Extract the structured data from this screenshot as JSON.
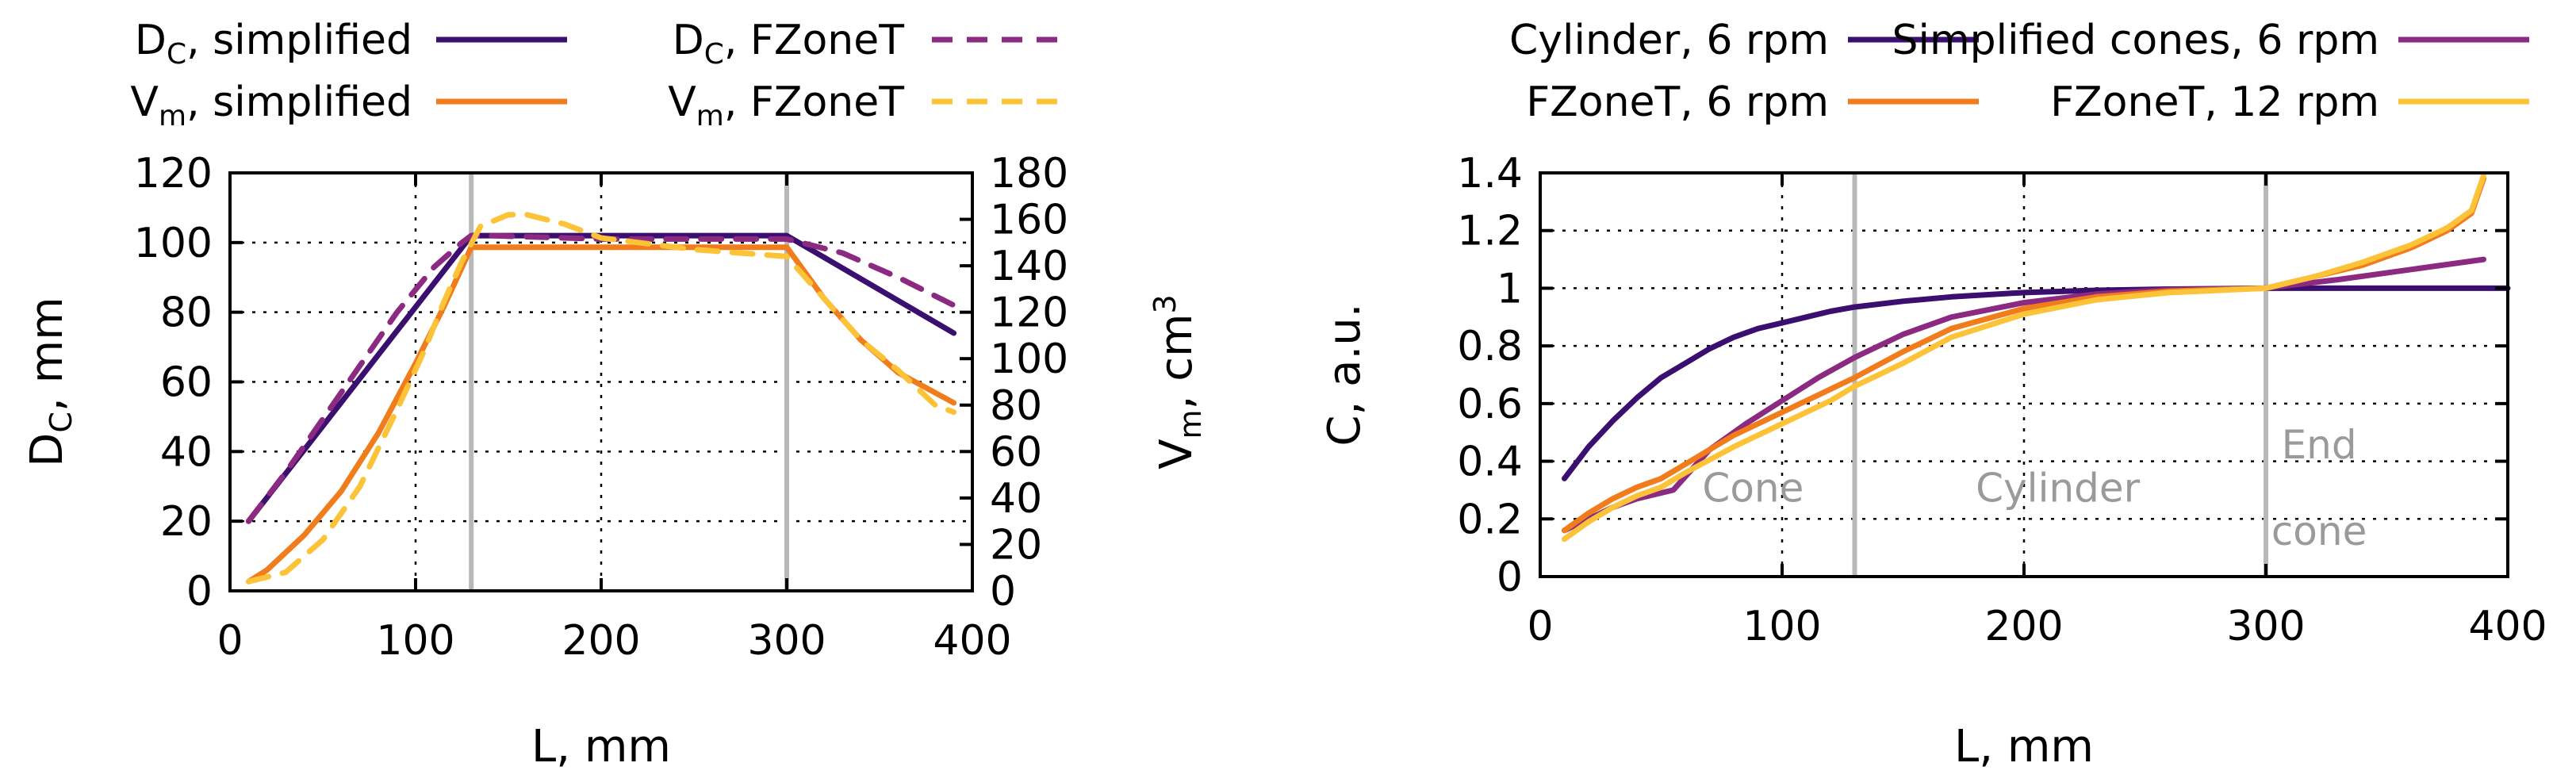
{
  "chart_data": [
    {
      "type": "line",
      "xlabel": "L, mm",
      "ylabel": "D",
      "ylabel_sub": "C",
      "ylabel_suffix": ", mm",
      "y2label": "V",
      "y2label_sub": "m",
      "y2label_suffix": ", cm",
      "y2label_sup": "3",
      "xlim": [
        0,
        400
      ],
      "ylim": [
        0,
        120
      ],
      "y2lim": [
        0,
        180
      ],
      "xticks": [
        "0",
        "100",
        "200",
        "300",
        "400"
      ],
      "yticks": [
        "0",
        "20",
        "40",
        "60",
        "80",
        "100",
        "120"
      ],
      "y2ticks": [
        "0",
        "20",
        "40",
        "60",
        "80",
        "100",
        "120",
        "140",
        "160",
        "180"
      ],
      "grid": true,
      "vlines": [
        130,
        300
      ],
      "legend_position": "top",
      "series": [
        {
          "name_main": "D",
          "name_sub": "C",
          "name_rest": ", simplified",
          "axis": "left",
          "color": "#3b0f6f",
          "style": "solid",
          "x": [
            10,
            130,
            300,
            390
          ],
          "y": [
            20,
            102,
            102,
            74
          ]
        },
        {
          "name_main": "D",
          "name_sub": "C",
          "name_rest": ", FZoneT",
          "axis": "left",
          "color": "#8c2981",
          "style": "dashed",
          "x": [
            10,
            30,
            60,
            90,
            110,
            125,
            130,
            140,
            200,
            250,
            300,
            330,
            360,
            390
          ],
          "y": [
            20,
            34,
            57,
            80,
            93,
            100,
            102,
            102,
            101,
            101,
            101,
            97,
            90,
            82
          ]
        },
        {
          "name_main": "V",
          "name_sub": "m",
          "name_rest": ", simplified",
          "axis": "right",
          "color": "#f07c1c",
          "style": "solid",
          "x": [
            10,
            20,
            40,
            60,
            80,
            100,
            115,
            130,
            200,
            300,
            320,
            340,
            360,
            390
          ],
          "y": [
            4,
            9,
            24,
            43,
            68,
            98,
            122,
            148,
            148,
            148,
            126,
            108,
            94,
            81
          ]
        },
        {
          "name_main": "V",
          "name_sub": "m",
          "name_rest": ", FZoneT",
          "axis": "right",
          "color": "#fcc338",
          "style": "dashed",
          "x": [
            10,
            30,
            50,
            70,
            90,
            105,
            115,
            125,
            135,
            150,
            160,
            180,
            200,
            250,
            300,
            320,
            340,
            360,
            380,
            390
          ],
          "y": [
            4,
            8,
            22,
            45,
            78,
            104,
            124,
            142,
            157,
            162,
            162,
            158,
            152,
            147,
            144,
            126,
            108,
            95,
            80,
            77
          ]
        }
      ]
    },
    {
      "type": "line",
      "xlabel": "L, mm",
      "ylabel": "C, a.u.",
      "xlim": [
        0,
        400
      ],
      "ylim": [
        0,
        1.4
      ],
      "xticks": [
        "0",
        "100",
        "200",
        "300",
        "400"
      ],
      "yticks": [
        "0",
        "0.2",
        "0.4",
        "0.6",
        "0.8",
        "1",
        "1.2",
        "1.4"
      ],
      "grid": true,
      "vlines": [
        130,
        300
      ],
      "legend_position": "top",
      "annotations": [
        {
          "text": "Cone",
          "x": 88,
          "y": 0.26
        },
        {
          "text": "Cylinder",
          "x": 214,
          "y": 0.26
        },
        {
          "text": "End",
          "x": 322,
          "y": 0.41
        },
        {
          "text": "cone",
          "x": 322,
          "y": 0.11
        }
      ],
      "series": [
        {
          "name": "Cylinder, 6 rpm",
          "color": "#3b0f6f",
          "x": [
            10,
            20,
            30,
            40,
            50,
            60,
            70,
            80,
            90,
            100,
            110,
            120,
            130,
            150,
            170,
            200,
            230,
            260,
            300,
            330,
            360,
            390,
            400
          ],
          "y": [
            0.34,
            0.45,
            0.54,
            0.62,
            0.69,
            0.74,
            0.79,
            0.83,
            0.86,
            0.88,
            0.9,
            0.92,
            0.935,
            0.955,
            0.97,
            0.985,
            0.993,
            0.997,
            1.0,
            1.0,
            1.0,
            1.0,
            1.0
          ]
        },
        {
          "name": "Simplified cones, 6 rpm",
          "color": "#8c2981",
          "x": [
            10,
            20,
            30,
            40,
            55,
            70,
            85,
            100,
            115,
            130,
            150,
            170,
            200,
            230,
            260,
            300,
            330,
            360,
            390
          ],
          "y": [
            0.16,
            0.2,
            0.24,
            0.27,
            0.3,
            0.44,
            0.53,
            0.61,
            0.69,
            0.76,
            0.84,
            0.9,
            0.95,
            0.98,
            0.995,
            1.0,
            1.03,
            1.065,
            1.1
          ]
        },
        {
          "name": "FZoneT, 6 rpm",
          "color": "#f07c1c",
          "x": [
            10,
            20,
            30,
            40,
            50,
            60,
            80,
            100,
            120,
            130,
            150,
            170,
            200,
            230,
            260,
            300,
            320,
            340,
            360,
            375,
            385,
            390
          ],
          "y": [
            0.16,
            0.22,
            0.27,
            0.31,
            0.34,
            0.39,
            0.49,
            0.57,
            0.65,
            0.69,
            0.78,
            0.86,
            0.93,
            0.97,
            0.99,
            1.0,
            1.04,
            1.08,
            1.14,
            1.2,
            1.26,
            1.38
          ]
        },
        {
          "name": "FZoneT, 12 rpm",
          "color": "#fcc338",
          "x": [
            10,
            20,
            30,
            40,
            50,
            60,
            80,
            100,
            120,
            130,
            150,
            170,
            200,
            230,
            260,
            300,
            320,
            340,
            360,
            375,
            385,
            390
          ],
          "y": [
            0.13,
            0.19,
            0.24,
            0.28,
            0.31,
            0.36,
            0.45,
            0.53,
            0.61,
            0.66,
            0.74,
            0.83,
            0.91,
            0.96,
            0.985,
            1.0,
            1.04,
            1.09,
            1.15,
            1.21,
            1.27,
            1.39
          ]
        }
      ]
    }
  ]
}
